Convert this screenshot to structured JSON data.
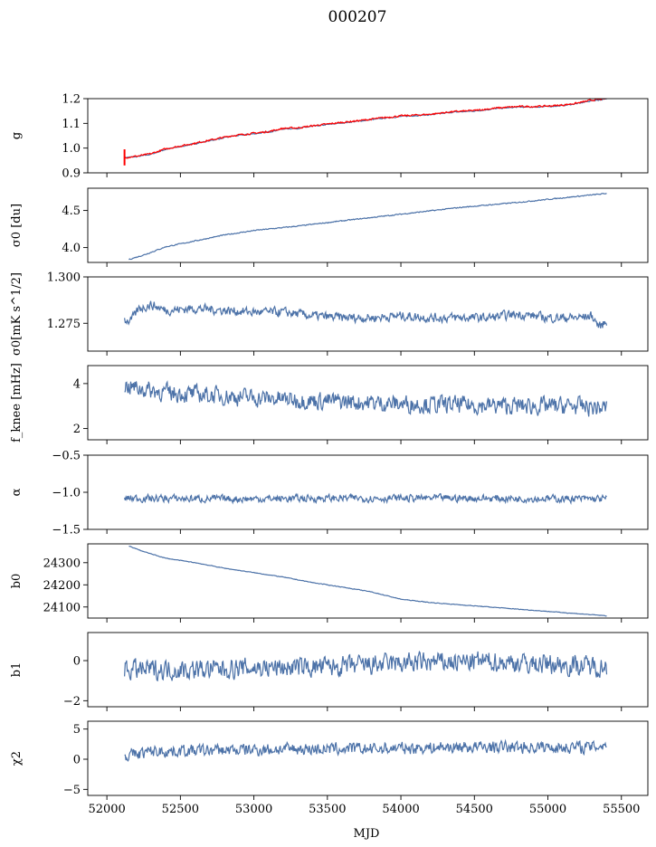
{
  "title": "000207",
  "xlabel": "MJD",
  "chart_data": [
    {
      "type": "line",
      "ylabel": "g",
      "xlim": [
        51870,
        55680
      ],
      "ylim": [
        0.9,
        1.2
      ],
      "yticks": [
        0.9,
        1.0,
        1.1,
        1.2
      ],
      "ytick_labels": [
        "0.9",
        "1.0",
        "1.1",
        "1.2"
      ],
      "series": [
        {
          "color": "#4c72a8",
          "noise": 0.002,
          "x": [
            52120,
            52200,
            52300,
            52400,
            52550,
            52700,
            52850,
            53000,
            53100,
            53200,
            53300,
            53400,
            53500,
            53600,
            53700,
            53800,
            53900,
            54000,
            54200,
            54350,
            54500,
            54650,
            54800,
            54900,
            55000,
            55100,
            55200,
            55300,
            55400
          ],
          "y": [
            0.962,
            0.965,
            0.975,
            0.995,
            1.012,
            1.03,
            1.048,
            1.058,
            1.065,
            1.078,
            1.08,
            1.088,
            1.095,
            1.102,
            1.108,
            1.115,
            1.122,
            1.128,
            1.135,
            1.145,
            1.15,
            1.16,
            1.166,
            1.166,
            1.168,
            1.172,
            1.18,
            1.192,
            1.198
          ]
        },
        {
          "color": "#ff0000",
          "noise": 0.003,
          "x": [
            52120,
            52200,
            52300,
            52400,
            52550,
            52700,
            52850,
            53000,
            53100,
            53200,
            53300,
            53400,
            53500,
            53600,
            53700,
            53800,
            53900,
            54000,
            54200,
            54350,
            54500,
            54650,
            54800,
            54900,
            55000,
            55100,
            55200,
            55300,
            55400
          ],
          "y": [
            0.962,
            0.967,
            0.977,
            0.997,
            1.014,
            1.032,
            1.05,
            1.06,
            1.067,
            1.08,
            1.082,
            1.09,
            1.097,
            1.104,
            1.11,
            1.117,
            1.124,
            1.13,
            1.137,
            1.147,
            1.152,
            1.162,
            1.168,
            1.168,
            1.17,
            1.174,
            1.182,
            1.194,
            1.2
          ]
        }
      ],
      "spike": {
        "x": 52120,
        "y_low": 0.93,
        "y_high": 0.995,
        "color": "#ff0000"
      }
    },
    {
      "type": "line",
      "ylabel": "σ0 [du]",
      "xlim": [
        51870,
        55680
      ],
      "ylim": [
        3.8,
        4.8
      ],
      "yticks": [
        4.0,
        4.5
      ],
      "ytick_labels": [
        "4.0",
        "4.5"
      ],
      "series": [
        {
          "color": "#4c72a8",
          "noise": 0.006,
          "x": [
            52150,
            52250,
            52400,
            52600,
            52800,
            53000,
            53300,
            53600,
            54000,
            54400,
            54800,
            55100,
            55400
          ],
          "y": [
            3.84,
            3.9,
            4.01,
            4.09,
            4.17,
            4.23,
            4.29,
            4.36,
            4.45,
            4.54,
            4.61,
            4.67,
            4.73
          ]
        }
      ]
    },
    {
      "type": "line",
      "ylabel": "σ0[mK s^1/2]",
      "xlim": [
        51870,
        55680
      ],
      "ylim": [
        1.26,
        1.3
      ],
      "yticks": [
        1.275,
        1.3
      ],
      "ytick_labels": [
        "1.275",
        "1.300"
      ],
      "series": [
        {
          "color": "#4c72a8",
          "noise": 0.0022,
          "x": [
            52120,
            52160,
            52220,
            52300,
            52400,
            52600,
            52800,
            53000,
            53200,
            53400,
            53600,
            53800,
            54000,
            54200,
            54400,
            54600,
            54800,
            55000,
            55200,
            55300,
            55350,
            55400
          ],
          "y": [
            1.277,
            1.276,
            1.283,
            1.285,
            1.282,
            1.283,
            1.282,
            1.281,
            1.281,
            1.279,
            1.278,
            1.278,
            1.279,
            1.278,
            1.278,
            1.278,
            1.28,
            1.278,
            1.278,
            1.279,
            1.273,
            1.276
          ]
        }
      ]
    },
    {
      "type": "line",
      "ylabel": "f_knee [mHz]",
      "xlim": [
        51870,
        55680
      ],
      "ylim": [
        1.5,
        4.8
      ],
      "yticks": [
        2,
        4
      ],
      "ytick_labels": [
        "2",
        "4"
      ],
      "series": [
        {
          "color": "#4c72a8",
          "noise": 0.35,
          "x": [
            52120,
            52400,
            52800,
            53200,
            53600,
            54000,
            54400,
            54800,
            55200,
            55400
          ],
          "y": [
            3.9,
            3.6,
            3.45,
            3.3,
            3.2,
            3.1,
            3.05,
            3.0,
            3.0,
            2.9
          ]
        }
      ]
    },
    {
      "type": "line",
      "ylabel": "α",
      "xlim": [
        51870,
        55680
      ],
      "ylim": [
        -1.5,
        -0.5
      ],
      "yticks": [
        -1.5,
        -1.0,
        -0.5
      ],
      "ytick_labels": [
        "−1.5",
        "−1.0",
        "−0.5"
      ],
      "series": [
        {
          "color": "#4c72a8",
          "noise": 0.045,
          "x": [
            52120,
            52800,
            53600,
            54400,
            55400
          ],
          "y": [
            -1.08,
            -1.09,
            -1.08,
            -1.08,
            -1.09
          ]
        }
      ]
    },
    {
      "type": "line",
      "ylabel": "b0",
      "xlim": [
        51870,
        55680
      ],
      "ylim": [
        24050,
        24385
      ],
      "yticks": [
        24100,
        24200,
        24300
      ],
      "ytick_labels": [
        "24100",
        "24200",
        "24300"
      ],
      "series": [
        {
          "color": "#4c72a8",
          "noise": 1.2,
          "x": [
            52150,
            52250,
            52400,
            52600,
            52800,
            53000,
            53200,
            53400,
            53600,
            53800,
            54000,
            54200,
            54400,
            54600,
            54800,
            55000,
            55200,
            55400
          ],
          "y": [
            24375,
            24350,
            24320,
            24300,
            24275,
            24255,
            24235,
            24210,
            24190,
            24168,
            24135,
            24120,
            24110,
            24100,
            24090,
            24080,
            24070,
            24060
          ]
        }
      ]
    },
    {
      "type": "line",
      "ylabel": "b1",
      "xlim": [
        51870,
        55680
      ],
      "ylim": [
        -2.3,
        1.4
      ],
      "yticks": [
        -2,
        0
      ],
      "ytick_labels": [
        "−2",
        "0"
      ],
      "series": [
        {
          "color": "#4c72a8",
          "noise": 0.45,
          "x": [
            52120,
            52600,
            53100,
            53600,
            54100,
            54600,
            55100,
            55400
          ],
          "y": [
            -0.45,
            -0.45,
            -0.35,
            -0.3,
            -0.1,
            -0.05,
            -0.2,
            -0.3
          ]
        }
      ]
    },
    {
      "type": "line",
      "ylabel": "χ2",
      "xlim": [
        51870,
        55680
      ],
      "ylim": [
        -6,
        6.3
      ],
      "yticks": [
        -5,
        0,
        5
      ],
      "ytick_labels": [
        "−5",
        "0",
        "5"
      ],
      "xticks": [
        52000,
        52500,
        53000,
        53500,
        54000,
        54500,
        55000,
        55500
      ],
      "xtick_labels": [
        "52000",
        "52500",
        "53000",
        "53500",
        "54000",
        "54500",
        "55000",
        "55500"
      ],
      "series": [
        {
          "color": "#4c72a8",
          "noise": 0.9,
          "x": [
            52120,
            52300,
            52800,
            53300,
            53800,
            54300,
            54800,
            55300,
            55400
          ],
          "y": [
            0.5,
            1.3,
            1.5,
            1.7,
            1.7,
            2.0,
            2.0,
            2.0,
            2.5
          ]
        }
      ]
    }
  ]
}
